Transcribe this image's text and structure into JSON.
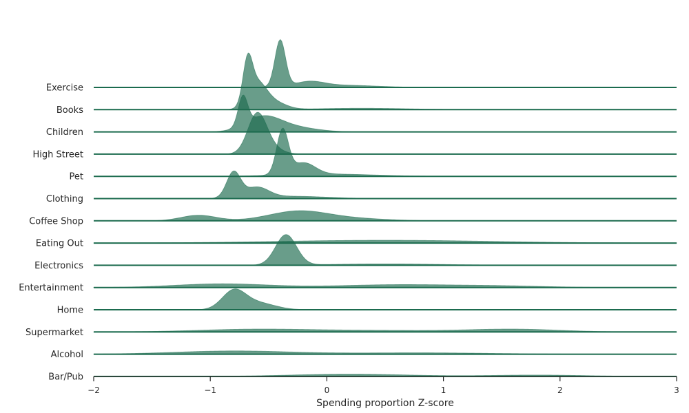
{
  "chart_data": {
    "type": "ridgeline",
    "xlabel": "Spending proportion Z-score",
    "xlim": [
      -2,
      3
    ],
    "xticks": [
      -2,
      -1,
      0,
      1,
      2,
      3
    ],
    "xtick_labels": [
      "−2",
      "−1",
      "0",
      "1",
      "2",
      "3"
    ],
    "color": "#1b6b4e",
    "fill_opacity": 0.66,
    "series": [
      {
        "name": "Exercise",
        "peaks": [
          {
            "mu": -0.4,
            "sigma": 0.045,
            "h": 1.0
          },
          {
            "mu": -0.15,
            "sigma": 0.12,
            "h": 0.1
          },
          {
            "mu": 0.1,
            "sigma": 0.3,
            "h": 0.05
          }
        ]
      },
      {
        "name": "Books",
        "peaks": [
          {
            "mu": -0.68,
            "sigma": 0.04,
            "h": 0.85
          },
          {
            "mu": -0.6,
            "sigma": 0.08,
            "h": 0.55
          },
          {
            "mu": -0.45,
            "sigma": 0.1,
            "h": 0.15
          },
          {
            "mu": 0.3,
            "sigma": 0.4,
            "h": 0.03
          }
        ]
      },
      {
        "name": "Children",
        "peaks": [
          {
            "mu": -0.72,
            "sigma": 0.04,
            "h": 0.62
          },
          {
            "mu": -0.55,
            "sigma": 0.15,
            "h": 0.3
          },
          {
            "mu": -0.3,
            "sigma": 0.2,
            "h": 0.1
          }
        ]
      },
      {
        "name": "High Street",
        "peaks": [
          {
            "mu": -0.6,
            "sigma": 0.08,
            "h": 0.8
          },
          {
            "mu": -0.5,
            "sigma": 0.1,
            "h": 0.15
          }
        ]
      },
      {
        "name": "Pet",
        "peaks": [
          {
            "mu": -0.38,
            "sigma": 0.05,
            "h": 0.95
          },
          {
            "mu": -0.2,
            "sigma": 0.1,
            "h": 0.25
          },
          {
            "mu": 0.0,
            "sigma": 0.4,
            "h": 0.05
          }
        ]
      },
      {
        "name": "Clothing",
        "peaks": [
          {
            "mu": -0.8,
            "sigma": 0.06,
            "h": 0.55
          },
          {
            "mu": -0.6,
            "sigma": 0.1,
            "h": 0.22
          },
          {
            "mu": -0.3,
            "sigma": 0.3,
            "h": 0.05
          }
        ]
      },
      {
        "name": "Coffee Shop",
        "peaks": [
          {
            "mu": -1.1,
            "sigma": 0.15,
            "h": 0.12
          },
          {
            "mu": -0.25,
            "sigma": 0.25,
            "h": 0.2
          },
          {
            "mu": 0.2,
            "sigma": 0.3,
            "h": 0.05
          }
        ]
      },
      {
        "name": "Eating Out",
        "peaks": [
          {
            "mu": 0.5,
            "sigma": 0.9,
            "h": 0.06
          }
        ]
      },
      {
        "name": "Electronics",
        "peaks": [
          {
            "mu": -0.35,
            "sigma": 0.09,
            "h": 0.65
          },
          {
            "mu": 0.5,
            "sigma": 0.5,
            "h": 0.03
          }
        ]
      },
      {
        "name": "Entertainment",
        "peaks": [
          {
            "mu": -0.9,
            "sigma": 0.4,
            "h": 0.08
          },
          {
            "mu": 0.6,
            "sigma": 0.5,
            "h": 0.06
          },
          {
            "mu": 1.5,
            "sigma": 0.4,
            "h": 0.03
          }
        ]
      },
      {
        "name": "Home",
        "peaks": [
          {
            "mu": -0.8,
            "sigma": 0.1,
            "h": 0.38
          },
          {
            "mu": -0.6,
            "sigma": 0.15,
            "h": 0.15
          }
        ]
      },
      {
        "name": "Supermarket",
        "peaks": [
          {
            "mu": -0.6,
            "sigma": 0.5,
            "h": 0.06
          },
          {
            "mu": 1.6,
            "sigma": 0.4,
            "h": 0.06
          },
          {
            "mu": 0.5,
            "sigma": 0.5,
            "h": 0.03
          }
        ]
      },
      {
        "name": "Alcohol",
        "peaks": [
          {
            "mu": -0.8,
            "sigma": 0.5,
            "h": 0.07
          },
          {
            "mu": 0.8,
            "sigma": 0.6,
            "h": 0.03
          }
        ]
      },
      {
        "name": "Bar/Pub",
        "peaks": [
          {
            "mu": 0.2,
            "sigma": 0.5,
            "h": 0.05
          },
          {
            "mu": 1.8,
            "sigma": 0.4,
            "h": 0.03
          }
        ]
      }
    ]
  }
}
